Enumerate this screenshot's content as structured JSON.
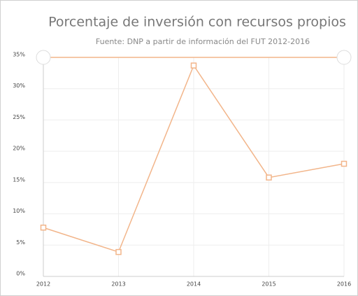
{
  "chart_data": {
    "type": "line",
    "title": "Porcentaje de inversión con recursos propios",
    "subtitle": "Fuente: DNP a partir de información del FUT 2012-2016",
    "categories": [
      "2012",
      "2013",
      "2014",
      "2015",
      "2016"
    ],
    "series": [
      {
        "name": "Porcentaje de inversión con recursos propios",
        "color": "#f2b58a",
        "values": [
          7.8,
          3.9,
          33.7,
          15.8,
          18.0
        ]
      }
    ],
    "ylim": [
      0,
      35
    ],
    "yticks": [
      {
        "value": 0,
        "label": "0%"
      },
      {
        "value": 5,
        "label": "5%"
      },
      {
        "value": 10,
        "label": "10%"
      },
      {
        "value": 15,
        "label": "15%"
      },
      {
        "value": 20,
        "label": "20%"
      },
      {
        "value": 25,
        "label": "25%"
      },
      {
        "value": 30,
        "label": "30%"
      },
      {
        "value": 35,
        "label": "35%"
      }
    ],
    "grid": true
  }
}
